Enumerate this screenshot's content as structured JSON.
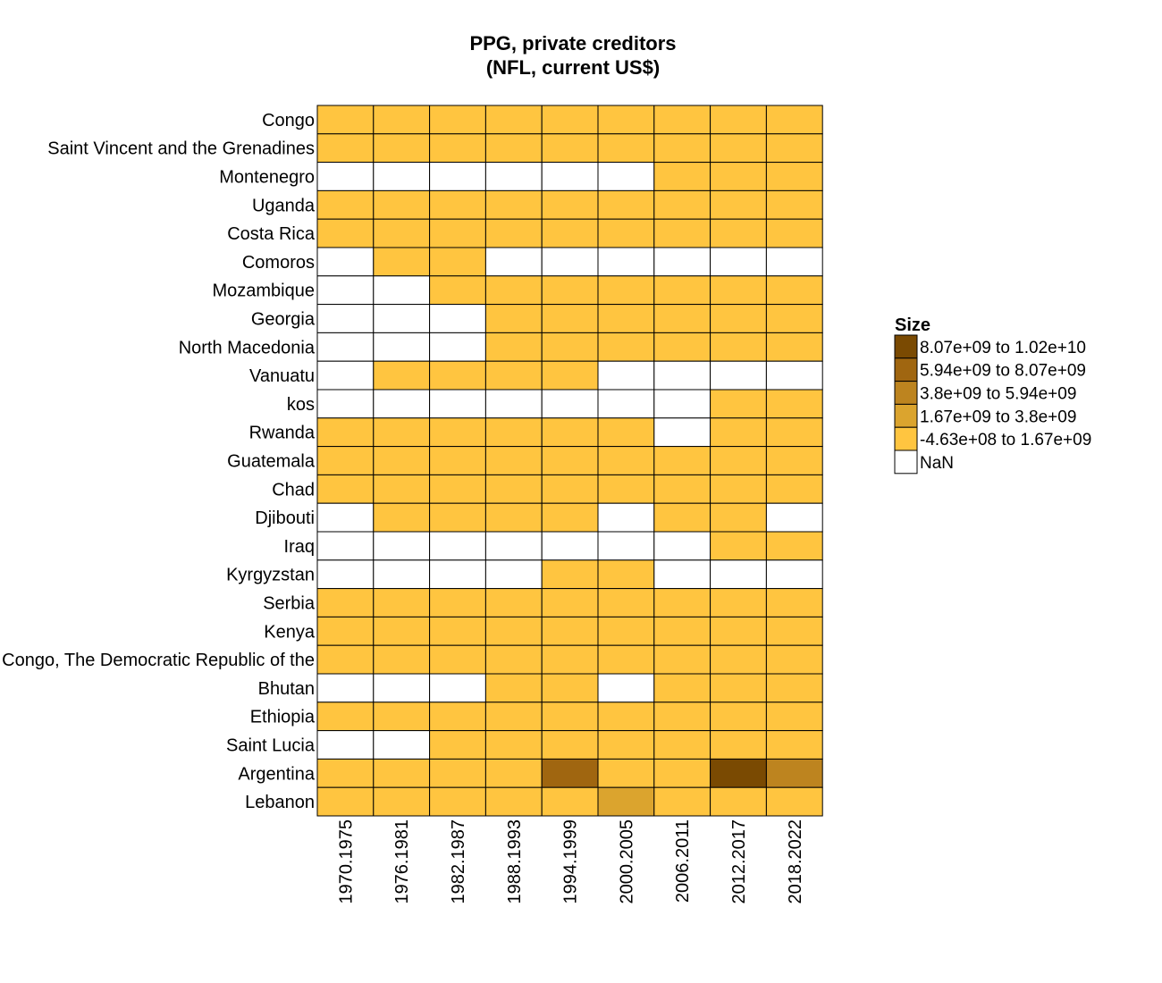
{
  "chart_data": {
    "type": "heatmap",
    "title": [
      "PPG, private creditors",
      "(NFL, current US$)"
    ],
    "x_categories": [
      "1970.1975",
      "1976.1981",
      "1982.1987",
      "1988.1993",
      "1994.1999",
      "2000.2005",
      "2006.2011",
      "2012.2017",
      "2018.2022"
    ],
    "y_categories": [
      "Congo",
      "Saint Vincent and the Grenadines",
      "Montenegro",
      "Uganda",
      "Costa Rica",
      "Comoros",
      "Mozambique",
      "Georgia",
      "North Macedonia",
      "Vanuatu",
      "kos",
      "Rwanda",
      "Guatemala",
      "Chad",
      "Djibouti",
      "Iraq",
      "Kyrgyzstan",
      "Serbia",
      "Kenya",
      "Congo, The Democratic Republic of the",
      "Bhutan",
      "Ethiopia",
      "Saint Lucia",
      "Argentina",
      "Lebanon"
    ],
    "bin_matrix": [
      [
        0,
        0,
        0,
        0,
        0,
        0,
        0,
        0,
        0
      ],
      [
        0,
        0,
        0,
        0,
        0,
        0,
        0,
        0,
        0
      ],
      [
        -1,
        -1,
        -1,
        -1,
        -1,
        -1,
        0,
        0,
        0
      ],
      [
        0,
        0,
        0,
        0,
        0,
        0,
        0,
        0,
        0
      ],
      [
        0,
        0,
        0,
        0,
        0,
        0,
        0,
        0,
        0
      ],
      [
        -1,
        0,
        0,
        -1,
        -1,
        -1,
        -1,
        -1,
        -1
      ],
      [
        -1,
        -1,
        0,
        0,
        0,
        0,
        0,
        0,
        0
      ],
      [
        -1,
        -1,
        -1,
        0,
        0,
        0,
        0,
        0,
        0
      ],
      [
        -1,
        -1,
        -1,
        0,
        0,
        0,
        0,
        0,
        0
      ],
      [
        -1,
        0,
        0,
        0,
        0,
        -1,
        -1,
        -1,
        -1
      ],
      [
        -1,
        -1,
        -1,
        -1,
        -1,
        -1,
        -1,
        0,
        0
      ],
      [
        0,
        0,
        0,
        0,
        0,
        0,
        -1,
        0,
        0
      ],
      [
        0,
        0,
        0,
        0,
        0,
        0,
        0,
        0,
        0
      ],
      [
        0,
        0,
        0,
        0,
        0,
        0,
        0,
        0,
        0
      ],
      [
        -1,
        0,
        0,
        0,
        0,
        -1,
        0,
        0,
        -1
      ],
      [
        -1,
        -1,
        -1,
        -1,
        -1,
        -1,
        -1,
        0,
        0
      ],
      [
        -1,
        -1,
        -1,
        -1,
        0,
        0,
        -1,
        -1,
        -1
      ],
      [
        0,
        0,
        0,
        0,
        0,
        0,
        0,
        0,
        0
      ],
      [
        0,
        0,
        0,
        0,
        0,
        0,
        0,
        0,
        0
      ],
      [
        0,
        0,
        0,
        0,
        0,
        0,
        0,
        0,
        0
      ],
      [
        -1,
        -1,
        -1,
        0,
        0,
        -1,
        0,
        0,
        0
      ],
      [
        0,
        0,
        0,
        0,
        0,
        0,
        0,
        0,
        0
      ],
      [
        -1,
        -1,
        0,
        0,
        0,
        0,
        0,
        0,
        0
      ],
      [
        0,
        0,
        0,
        0,
        3,
        0,
        0,
        4,
        2
      ],
      [
        0,
        0,
        0,
        0,
        0,
        1,
        0,
        0,
        0
      ]
    ],
    "legend": {
      "title": "Size",
      "placement": "right",
      "bins": [
        {
          "label": "-4.63e+08 to 1.67e+09",
          "color": "#ffc540"
        },
        {
          "label": "1.67e+09 to 3.8e+09",
          "color": "#dba42e"
        },
        {
          "label": "3.8e+09 to 5.94e+09",
          "color": "#bd841f"
        },
        {
          "label": "5.94e+09 to 8.07e+09",
          "color": "#a06610"
        },
        {
          "label": "8.07e+09 to 1.02e+10",
          "color": "#7a4a02"
        }
      ],
      "nan": {
        "label": "NaN",
        "color": "#ffffff"
      }
    }
  }
}
